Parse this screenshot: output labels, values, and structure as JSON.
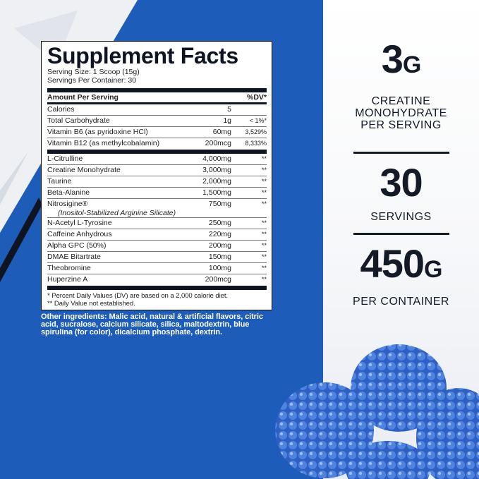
{
  "colors": {
    "background_blue": "#1d5cb8",
    "text_dark": "#141a26"
  },
  "facts": {
    "title": "Supplement Facts",
    "serving_size": "Serving Size: 1 Scoop (15g)",
    "servings_per_container": "Servings Per Container: 30",
    "header_amount": "Amount Per Serving",
    "header_dv": "%DV*",
    "vitamins": [
      {
        "name": "Calories",
        "amount": "5",
        "dv": ""
      },
      {
        "name": "Total Carbohydrate",
        "amount": "1g",
        "dv": "< 1%*"
      },
      {
        "name": "Vitamin B6 (as pyridoxine HCl)",
        "amount": "60mg",
        "dv": "3,529%"
      },
      {
        "name": "Vitamin B12 (as methylcobalamin)",
        "amount": "200mcg",
        "dv": "8,333%"
      }
    ],
    "ingredients": [
      {
        "name": "L-Citrulline",
        "amount": "4,000mg",
        "dv": "**"
      },
      {
        "name": "Creatine Monohydrate",
        "amount": "3,000mg",
        "dv": "**"
      },
      {
        "name": "Taurine",
        "amount": "2,000mg",
        "dv": "**"
      },
      {
        "name": "Beta-Alanine",
        "amount": "1,500mg",
        "dv": "**"
      },
      {
        "name": "Nitrosigine®",
        "sub": "(Inositol-Stabilized Arginine Silicate)",
        "amount": "750mg",
        "dv": "**"
      },
      {
        "name": "N-Acetyl L-Tyrosine",
        "amount": "250mg",
        "dv": "**"
      },
      {
        "name": "Caffeine Anhydrous",
        "amount": "220mg",
        "dv": "**"
      },
      {
        "name": "Alpha GPC (50%)",
        "amount": "200mg",
        "dv": "**"
      },
      {
        "name": "DMAE Bitartrate",
        "amount": "150mg",
        "dv": "**"
      },
      {
        "name": "Theobromine",
        "amount": "100mg",
        "dv": "**"
      },
      {
        "name": "Huperzine A",
        "amount": "200mcg",
        "dv": "**"
      }
    ],
    "footnote_1": "* Percent Daily Values (DV) are based on a 2,000 calorie diet.",
    "footnote_2": "** Daily Value not established."
  },
  "other_ingredients": "Other ingredients: Malic acid, natural & artificial flavors, citric acid, sucralose, calcium silicate, silica, maltodextrin, blue spirulina (for color), dicalcium phosphate, dextrin.",
  "stats": [
    {
      "value": "3",
      "unit": "G",
      "label": [
        "CREATINE",
        "MONOHYDRATE",
        "PER SERVING"
      ]
    },
    {
      "value": "30",
      "unit": "",
      "label": [
        "SERVINGS"
      ]
    },
    {
      "value": "450",
      "unit": "G",
      "label": [
        "PER CONTAINER"
      ]
    }
  ]
}
